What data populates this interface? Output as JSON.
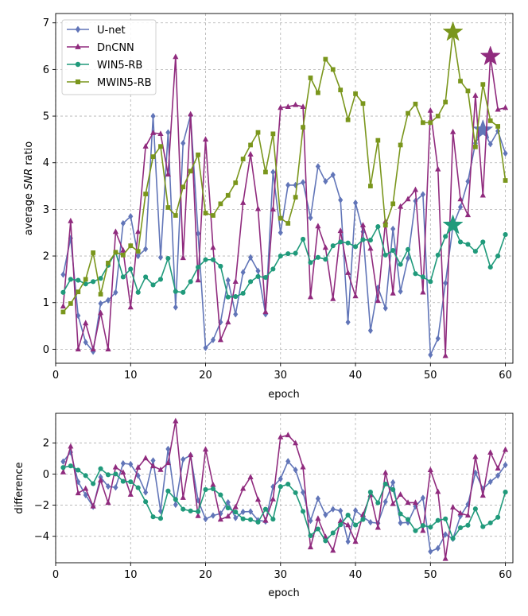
{
  "chart_data": [
    {
      "type": "line",
      "id": "top",
      "xlabel": "epoch",
      "ylabel_prefix": "average ",
      "ylabel_italic": "SNR",
      "ylabel_suffix": " ratio",
      "xlim": [
        0,
        61
      ],
      "ylim": [
        -0.3,
        7.2
      ],
      "xticks": [
        0,
        10,
        20,
        30,
        40,
        50,
        60
      ],
      "yticks": [
        0,
        1,
        2,
        3,
        4,
        5,
        6,
        7
      ],
      "grid": true,
      "legend_position": "top-left",
      "series": [
        {
          "name": "U-net",
          "color": "#6175b8",
          "marker": "diamond",
          "values": [
            1.6,
            2.38,
            0.72,
            0.15,
            -0.05,
            0.98,
            1.05,
            1.22,
            2.7,
            2.85,
            2.0,
            2.15,
            5.0,
            1.97,
            4.65,
            0.9,
            4.42,
            5.02,
            2.48,
            0.03,
            0.2,
            0.58,
            1.48,
            0.75,
            1.65,
            1.97,
            1.68,
            0.75,
            3.8,
            2.5,
            3.52,
            3.52,
            3.58,
            2.82,
            3.92,
            3.6,
            3.74,
            3.2,
            0.58,
            3.14,
            2.52,
            0.4,
            1.32,
            0.88,
            2.58,
            1.24,
            1.95,
            3.18,
            3.32,
            -0.12,
            0.23,
            1.42,
            2.64,
            3.05,
            3.6,
            4.42,
            4.7,
            4.4,
            4.68,
            4.2
          ],
          "highlight": {
            "epoch": 57,
            "value": 4.7
          }
        },
        {
          "name": "DnCNN",
          "color": "#902b7e",
          "marker": "triangle",
          "values": [
            0.92,
            2.75,
            0.0,
            0.56,
            0.0,
            0.78,
            0.0,
            2.52,
            2.12,
            0.9,
            2.52,
            4.35,
            4.64,
            4.62,
            3.75,
            6.27,
            1.96,
            5.04,
            1.48,
            4.5,
            2.18,
            0.2,
            0.58,
            1.45,
            3.14,
            4.18,
            3.01,
            0.8,
            3.0,
            5.18,
            5.2,
            5.24,
            5.2,
            1.12,
            2.64,
            2.18,
            1.08,
            2.54,
            1.64,
            1.14,
            2.66,
            2.16,
            1.04,
            2.74,
            1.2,
            3.06,
            3.22,
            3.42,
            1.22,
            5.12,
            3.86,
            -0.14,
            4.66,
            3.22,
            2.88,
            5.44,
            3.3,
            6.28,
            5.14,
            5.18
          ],
          "highlight": {
            "epoch": 58,
            "value": 6.28
          }
        },
        {
          "name": "WIN5-RB",
          "color": "#209a7b",
          "marker": "circle",
          "values": [
            1.22,
            1.5,
            1.48,
            1.4,
            1.45,
            1.52,
            1.8,
            2.08,
            1.55,
            1.72,
            1.22,
            1.55,
            1.38,
            1.5,
            1.95,
            1.24,
            1.22,
            1.45,
            1.76,
            1.92,
            1.92,
            1.78,
            1.12,
            1.13,
            1.2,
            1.45,
            1.56,
            1.54,
            1.72,
            2.0,
            2.05,
            2.06,
            2.36,
            1.86,
            1.97,
            1.93,
            2.22,
            2.3,
            2.28,
            2.2,
            2.35,
            2.34,
            2.63,
            2.02,
            2.12,
            1.82,
            2.14,
            1.62,
            1.55,
            1.45,
            2.02,
            2.42,
            2.66,
            2.3,
            2.25,
            2.1,
            2.3,
            1.76,
            2.0,
            2.46
          ],
          "highlight": {
            "epoch": 53,
            "value": 2.66
          }
        },
        {
          "name": "MWIN5-RB",
          "color": "#7a961c",
          "marker": "square",
          "values": [
            0.8,
            0.98,
            1.23,
            1.5,
            2.07,
            1.18,
            1.85,
            2.08,
            2.02,
            2.22,
            2.1,
            3.33,
            4.13,
            4.35,
            3.04,
            2.87,
            3.48,
            3.82,
            4.17,
            2.92,
            2.87,
            3.12,
            3.3,
            3.57,
            4.08,
            4.38,
            4.65,
            3.8,
            4.62,
            2.81,
            2.7,
            3.26,
            4.76,
            5.82,
            5.5,
            6.22,
            6.0,
            5.56,
            4.92,
            5.48,
            5.27,
            3.5,
            4.48,
            2.66,
            3.12,
            4.38,
            5.06,
            5.26,
            4.86,
            4.86,
            5.0,
            5.3,
            6.8,
            5.75,
            5.54,
            4.34,
            5.68,
            4.9,
            4.78,
            3.62
          ],
          "highlight": {
            "epoch": 53,
            "value": 6.8
          }
        }
      ]
    },
    {
      "type": "line",
      "id": "bottom",
      "xlabel": "epoch",
      "ylabel": "difference",
      "xlim": [
        0,
        61
      ],
      "ylim": [
        -5.7,
        3.9
      ],
      "xticks": [
        0,
        10,
        20,
        30,
        40,
        50,
        60
      ],
      "yticks": [
        2,
        0,
        -2,
        -4
      ],
      "ytick_labels": [
        "2",
        "0",
        "−2",
        "−4"
      ],
      "grid": true,
      "series": [
        {
          "name": "U-net",
          "color": "#6175b8",
          "marker": "diamond",
          "values": [
            0.8,
            1.4,
            -0.5,
            -1.35,
            -2.1,
            -0.2,
            -0.8,
            -0.86,
            0.68,
            0.63,
            -0.1,
            -1.18,
            0.87,
            -2.38,
            1.61,
            -1.97,
            0.94,
            1.2,
            -1.69,
            -2.89,
            -2.67,
            -2.54,
            -1.82,
            -2.82,
            -2.43,
            -2.41,
            -2.97,
            -3.05,
            -0.82,
            -0.31,
            0.82,
            0.26,
            -1.18,
            -3.0,
            -1.58,
            -2.62,
            -2.26,
            -2.36,
            -4.34,
            -2.34,
            -2.75,
            -3.1,
            -3.16,
            -1.78,
            -0.54,
            -3.14,
            -3.11,
            -2.08,
            -1.54,
            -4.98,
            -4.77,
            -3.88,
            -4.16,
            -2.7,
            -1.94,
            0.08,
            -0.95,
            -0.5,
            -0.1,
            0.58
          ]
        },
        {
          "name": "DnCNN",
          "color": "#902b7e",
          "marker": "triangle",
          "values": [
            0.12,
            1.77,
            -1.23,
            -0.94,
            -2.07,
            -0.4,
            -1.85,
            0.44,
            0.1,
            -1.32,
            0.42,
            1.02,
            0.51,
            0.27,
            0.71,
            3.4,
            -1.52,
            1.22,
            -2.69,
            1.58,
            -0.69,
            -2.92,
            -2.72,
            -2.12,
            -0.94,
            -0.2,
            -1.64,
            -2.99,
            -1.62,
            2.37,
            2.5,
            1.98,
            0.44,
            -4.7,
            -2.86,
            -4.04,
            -4.92,
            -3.02,
            -3.28,
            -4.34,
            -2.61,
            -1.34,
            -3.44,
            0.08,
            -1.92,
            -1.32,
            -1.84,
            -1.84,
            -3.64,
            0.26,
            -1.14,
            -5.44,
            -2.14,
            -2.52,
            -2.66,
            1.1,
            -1.38,
            1.38,
            0.36,
            1.56
          ]
        },
        {
          "name": "WIN5-RB",
          "color": "#209a7b",
          "marker": "circle",
          "values": [
            0.42,
            0.52,
            0.25,
            -0.1,
            -0.62,
            0.34,
            -0.05,
            -0.0,
            -0.47,
            -0.5,
            -0.88,
            -1.78,
            -2.75,
            -2.85,
            -1.09,
            -1.63,
            -2.26,
            -2.37,
            -2.41,
            -1.0,
            -0.95,
            -1.34,
            -2.18,
            -2.44,
            -2.88,
            -2.93,
            -3.09,
            -2.26,
            -2.9,
            -0.81,
            -0.65,
            -1.2,
            -2.4,
            -3.96,
            -3.53,
            -4.29,
            -3.78,
            -3.26,
            -2.64,
            -3.28,
            -2.92,
            -1.16,
            -1.85,
            -0.64,
            -1.0,
            -2.56,
            -2.92,
            -3.64,
            -3.31,
            -3.41,
            -2.98,
            -2.88,
            -4.14,
            -3.45,
            -3.29,
            -2.24,
            -3.38,
            -3.14,
            -2.78,
            -1.16
          ]
        }
      ]
    }
  ]
}
